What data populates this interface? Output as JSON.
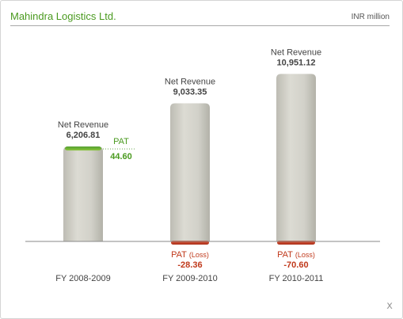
{
  "header": {
    "company": "Mahindra Logistics Ltd.",
    "unit": "INR million"
  },
  "close_label": "x",
  "colors": {
    "accent_green": "#4a9a1f",
    "loss_red": "#c0391b",
    "bar_gray": "#cfcec6",
    "label_gray": "#444444"
  },
  "chart_data": {
    "type": "bar",
    "categories": [
      "FY 2008-2009",
      "FY 2009-2010",
      "FY 2010-2011"
    ],
    "series": [
      {
        "name": "Net Revenue",
        "values": [
          6206.81,
          9033.35,
          10951.12
        ],
        "value_labels": [
          "6,206.81",
          "9,033.35",
          "10,951.12"
        ]
      },
      {
        "name": "PAT",
        "values": [
          44.6,
          -28.36,
          -70.6
        ],
        "value_labels": [
          "44.60",
          "-28.36",
          "-70.60"
        ]
      }
    ],
    "annotations": {
      "revenue_label": "Net Revenue",
      "pat_label": "PAT",
      "loss_suffix": "(Loss)"
    },
    "ylim": [
      0,
      11000
    ],
    "grid": false
  }
}
